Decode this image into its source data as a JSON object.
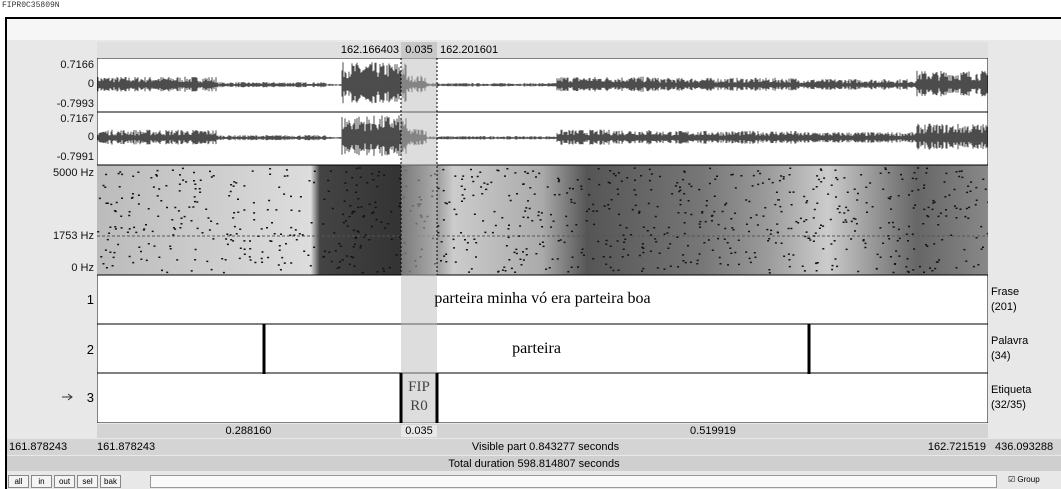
{
  "window_title": "FIPR0C35809N",
  "selection": {
    "start": "162.166403",
    "length": "0.035",
    "end": "162.201601"
  },
  "channels": [
    {
      "max": "0.7166",
      "zero": "0",
      "min": "-0.7993"
    },
    {
      "max": "0.7167",
      "zero": "0",
      "min": "-0.7991"
    }
  ],
  "spectrogram": {
    "top": "5000 Hz",
    "cursor": "1753 Hz",
    "bottom": "0 Hz"
  },
  "tiers": [
    {
      "number": "1",
      "name": "Frase",
      "count": "(201)",
      "text": "parteira minha vó era parteira boa"
    },
    {
      "number": "2",
      "name": "Palavra",
      "count": "(34)",
      "text": "parteira"
    },
    {
      "number": "3",
      "name": "Etiqueta",
      "count": "(32/35)",
      "text_lines": [
        "FIP",
        "R0"
      ]
    }
  ],
  "durations": {
    "left": "0.288160",
    "selection": "0.035",
    "right": "0.519919"
  },
  "footer": {
    "window_start": "161.878243",
    "visible_start": "161.878243",
    "visible": "Visible part 0.843277 seconds",
    "visible_end": "162.721519",
    "window_end": "436.093288",
    "total": "Total duration 598.814807 seconds"
  },
  "buttons": [
    "all",
    "in",
    "out",
    "sel",
    "bak"
  ],
  "group_label": "Group"
}
